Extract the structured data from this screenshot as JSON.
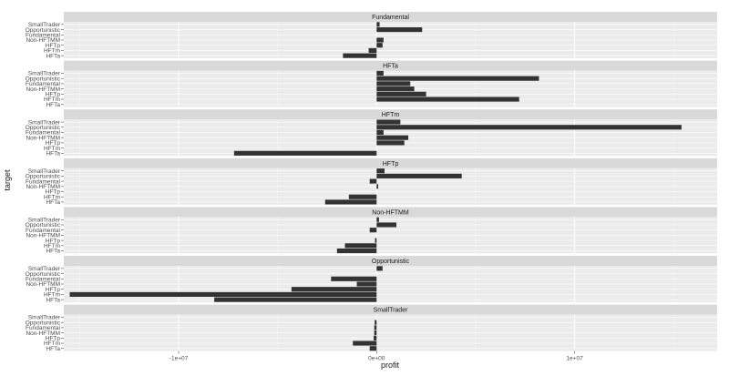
{
  "chart_data": {
    "type": "bar",
    "orientation": "horizontal",
    "faceting": "vertical-panels",
    "xlabel": "profit",
    "ylabel": "target",
    "x_ticks": [
      {
        "value": -10000000,
        "label": "-1e+07"
      },
      {
        "value": 0,
        "label": "0e+00"
      },
      {
        "value": 10000000,
        "label": "1e+07"
      }
    ],
    "xlim": [
      -15800000,
      17200000
    ],
    "categories": [
      "SmallTrader",
      "Opportunistic",
      "Fundamental",
      "Non-HFTMM",
      "HFTp",
      "HFTm",
      "HFTa"
    ],
    "bar_color": "#333333",
    "panel_background": "#ebebeb",
    "strip_background": "#d9d9d9",
    "panels": [
      {
        "title": "Fundamental",
        "values": [
          150000,
          2300000,
          0,
          350000,
          300000,
          -400000,
          -1700000
        ]
      },
      {
        "title": "HFTa",
        "values": [
          350000,
          8200000,
          1700000,
          1900000,
          2500000,
          7200000,
          0
        ]
      },
      {
        "title": "HFTm",
        "values": [
          1200000,
          15400000,
          350000,
          1600000,
          1400000,
          0,
          -7200000
        ]
      },
      {
        "title": "HFTp",
        "values": [
          400000,
          4300000,
          -350000,
          80000,
          0,
          -1400000,
          -2600000
        ]
      },
      {
        "title": "Non-HFTMM",
        "values": [
          120000,
          1000000,
          -350000,
          0,
          -80000,
          -1600000,
          -2000000
        ]
      },
      {
        "title": "Opportunistic",
        "values": [
          300000,
          0,
          -2300000,
          -1000000,
          -4300000,
          -15500000,
          -8200000
        ]
      },
      {
        "title": "SmallTrader",
        "values": [
          0,
          -100000,
          -120000,
          -120000,
          -150000,
          -1200000,
          -350000
        ]
      }
    ]
  }
}
